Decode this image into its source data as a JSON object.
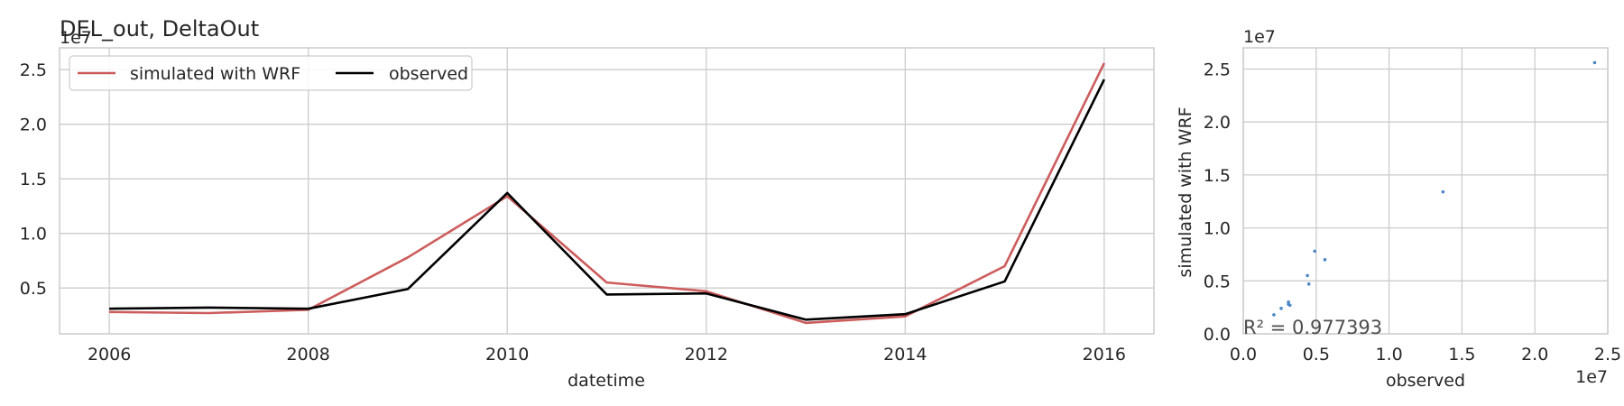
{
  "chart_data": [
    {
      "type": "line",
      "title": "DEL_out, DeltaOut",
      "xlabel": "datetime",
      "ylabel": "",
      "y_offset_label": "1e7",
      "xlim": [
        2005.5,
        2016.5
      ],
      "ylim": [
        0.08,
        2.7
      ],
      "x_ticks": [
        2006,
        2008,
        2010,
        2012,
        2014,
        2016
      ],
      "x_tick_labels": [
        "2006",
        "2008",
        "2010",
        "2012",
        "2014",
        "2016"
      ],
      "y_ticks": [
        0.5,
        1.0,
        1.5,
        2.0,
        2.5
      ],
      "y_tick_labels": [
        "0.5",
        "1.0",
        "1.5",
        "2.0",
        "2.5"
      ],
      "grid": true,
      "legend": {
        "placement": "top-left",
        "columns": 2
      },
      "x": [
        2006,
        2007,
        2008,
        2009,
        2010,
        2011,
        2012,
        2013,
        2014,
        2015,
        2016
      ],
      "series": [
        {
          "name": "simulated with WRF",
          "color": "#cd5c5c",
          "values": [
            0.28,
            0.27,
            0.3,
            0.78,
            1.34,
            0.55,
            0.47,
            0.18,
            0.24,
            0.7,
            2.56
          ]
        },
        {
          "name": "observed",
          "color": "#000000",
          "values": [
            0.31,
            0.32,
            0.31,
            0.49,
            1.37,
            0.44,
            0.45,
            0.21,
            0.26,
            0.56,
            2.41
          ]
        }
      ]
    },
    {
      "type": "scatter",
      "title": "",
      "xlabel": "observed",
      "ylabel": "simulated with WRF",
      "x_offset_label": "1e7",
      "y_offset_label": "1e7",
      "xlim": [
        0.0,
        2.5
      ],
      "ylim": [
        0.0,
        2.7
      ],
      "x_ticks": [
        0.0,
        0.5,
        1.0,
        1.5,
        2.0,
        2.5
      ],
      "x_tick_labels": [
        "0.0",
        "0.5",
        "1.0",
        "1.5",
        "2.0",
        "2.5"
      ],
      "y_ticks": [
        0.0,
        0.5,
        1.0,
        1.5,
        2.0,
        2.5
      ],
      "y_tick_labels": [
        "0.0",
        "0.5",
        "1.0",
        "1.5",
        "2.0",
        "2.5"
      ],
      "grid": true,
      "point_color": "#4a86c5",
      "annotation": "R² = 0.977393",
      "points": [
        {
          "x": 0.31,
          "y": 0.28
        },
        {
          "x": 0.32,
          "y": 0.27
        },
        {
          "x": 0.31,
          "y": 0.3
        },
        {
          "x": 0.49,
          "y": 0.78
        },
        {
          "x": 1.37,
          "y": 1.34
        },
        {
          "x": 0.44,
          "y": 0.55
        },
        {
          "x": 0.45,
          "y": 0.47
        },
        {
          "x": 0.21,
          "y": 0.18
        },
        {
          "x": 0.26,
          "y": 0.24
        },
        {
          "x": 0.56,
          "y": 0.7
        },
        {
          "x": 2.41,
          "y": 2.56
        }
      ]
    }
  ]
}
